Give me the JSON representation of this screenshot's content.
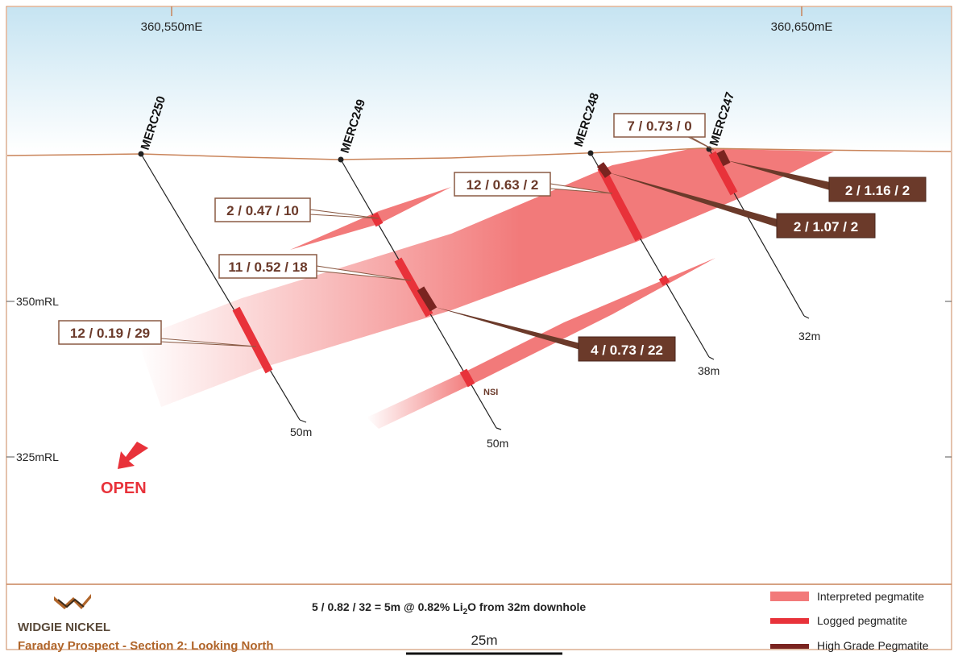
{
  "grid": {
    "easting_labels": [
      "360,550mE",
      "360,650mE"
    ],
    "rl_labels": [
      "350mRL",
      "325mRL"
    ]
  },
  "holes": [
    {
      "name": "MERC250",
      "depth": "50m"
    },
    {
      "name": "MERC249",
      "depth": "50m"
    },
    {
      "name": "MERC248",
      "depth": "38m"
    },
    {
      "name": "MERC247",
      "depth": "32m"
    }
  ],
  "intercepts_logged": [
    "12 / 0.19 / 29",
    "2 / 0.47 / 10",
    "11 / 0.52 / 18",
    "12 / 0.63 / 2",
    "7 / 0.73 / 0"
  ],
  "intercepts_high_grade": [
    "4 / 0.73 / 22",
    "2 / 1.07 / 2",
    "2 / 1.16 / 2"
  ],
  "nsi_label": "NSI",
  "open_label": "OPEN",
  "footer": {
    "company": "WIDGIE NICKEL",
    "section_title": "Faraday Prospect - Section 2: Looking North",
    "key_prefix": "5 / 0.82 / 32 = 5m @ 0.82% Li",
    "key_sub": "2",
    "key_suffix": "O from 32m downhole",
    "scale_label": "25m"
  },
  "legend": [
    {
      "label": "Interpreted pegmatite",
      "color": "#f27a7a"
    },
    {
      "label": "Logged pegmatite",
      "color": "#e8323a"
    },
    {
      "label": "High Grade Pegmatite",
      "color": "#7a2420"
    }
  ],
  "colors": {
    "sky_top": "#cfe8f3",
    "surface_line": "#c9845a",
    "hole_line": "#222222",
    "label_border": "#8a5a44",
    "label_text": "#6b3a2a",
    "hg_box": "#6b3a2a",
    "brand_text": "#b0652a",
    "open_red": "#e8323a"
  }
}
